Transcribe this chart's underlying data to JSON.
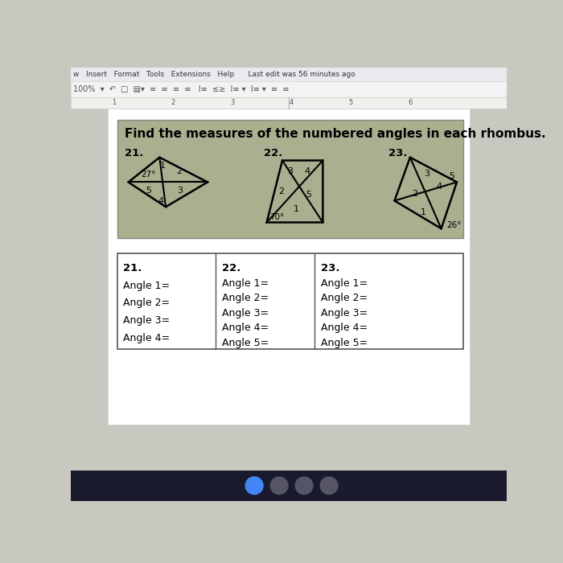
{
  "page_bg": "#c8c8c0",
  "toolbar_bg": "#f1f3f4",
  "toolbar_border": "#dadce0",
  "ruler_bg": "#f8f9fa",
  "doc_bg": "#ffffff",
  "banner_bg": "#a8b090",
  "banner_border": "#888880",
  "table_bg": "#ffffff",
  "table_border": "#555555",
  "title": "Find the measures of the numbered angles in each rhombus.",
  "title_fontsize": 11,
  "menu_text": "w   Insert   Format   Tools   Extensions   Help      Last edit was 56 minutes ago",
  "toolbar_text": "100%  ▾  ↶  □  ▤▾  ≡  ≡  ≡  ≡   I≡  ≤≥  I≡ ▾  I≡ ▾  ≡  ≡",
  "ruler_numbers": [
    "1",
    "2",
    "3",
    "4",
    "5",
    "6"
  ],
  "answer_labels_21": [
    "21.",
    "Angle 1=",
    "Angle 2=",
    "Angle 3=",
    "Angle 4="
  ],
  "answer_labels_22": [
    "22.",
    "Angle 1=",
    "Angle 2=",
    "Angle 3=",
    "Angle 4=",
    "Angle 5="
  ],
  "answer_labels_23": [
    "23.",
    "Angle 1=",
    "Angle 2=",
    "Angle 3=",
    "Angle 4=",
    "Angle 5="
  ],
  "prob21_label": "21.",
  "prob22_label": "22.",
  "prob23_label": "23.",
  "angle21": "27°",
  "angle22": "70°",
  "angle23": "26°",
  "rhombus21_color": "#000000",
  "rhombus22_color": "#000000",
  "rhombus23_color": "#000000"
}
